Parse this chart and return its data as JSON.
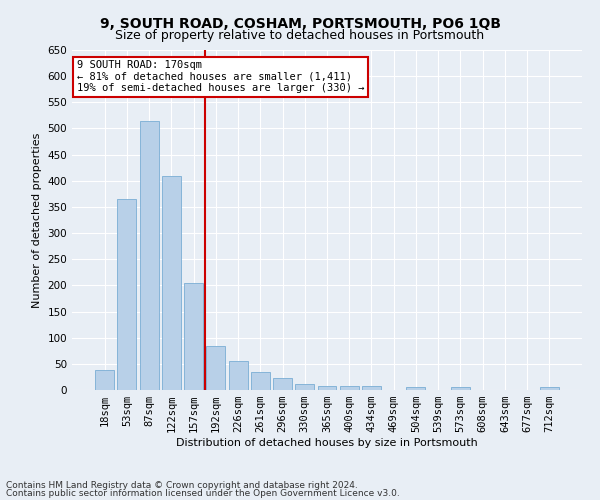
{
  "title": "9, SOUTH ROAD, COSHAM, PORTSMOUTH, PO6 1QB",
  "subtitle": "Size of property relative to detached houses in Portsmouth",
  "xlabel": "Distribution of detached houses by size in Portsmouth",
  "ylabel": "Number of detached properties",
  "all_labels": [
    "18sqm",
    "53sqm",
    "87sqm",
    "122sqm",
    "157sqm",
    "192sqm",
    "226sqm",
    "261sqm",
    "296sqm",
    "330sqm",
    "365sqm",
    "400sqm",
    "434sqm",
    "469sqm",
    "504sqm",
    "539sqm",
    "573sqm",
    "608sqm",
    "643sqm",
    "677sqm",
    "712sqm"
  ],
  "all_values": [
    38,
    365,
    515,
    410,
    205,
    84,
    55,
    35,
    22,
    11,
    8,
    8,
    8,
    0,
    5,
    0,
    5,
    0,
    0,
    0,
    5
  ],
  "bar_color": "#b8d0e8",
  "bar_edge_color": "#7aadd4",
  "vline_index": 4,
  "vline_color": "#cc0000",
  "ylim": [
    0,
    650
  ],
  "yticks": [
    0,
    50,
    100,
    150,
    200,
    250,
    300,
    350,
    400,
    450,
    500,
    550,
    600,
    650
  ],
  "annotation_text": "9 SOUTH ROAD: 170sqm\n← 81% of detached houses are smaller (1,411)\n19% of semi-detached houses are larger (330) →",
  "annotation_box_color": "#ffffff",
  "annotation_box_edge": "#cc0000",
  "footer1": "Contains HM Land Registry data © Crown copyright and database right 2024.",
  "footer2": "Contains public sector information licensed under the Open Government Licence v3.0.",
  "bg_color": "#e8eef5",
  "plot_bg_color": "#e8eef5",
  "grid_color": "#ffffff",
  "title_fontsize": 10,
  "subtitle_fontsize": 9,
  "label_fontsize": 8,
  "tick_fontsize": 7.5,
  "footer_fontsize": 6.5
}
